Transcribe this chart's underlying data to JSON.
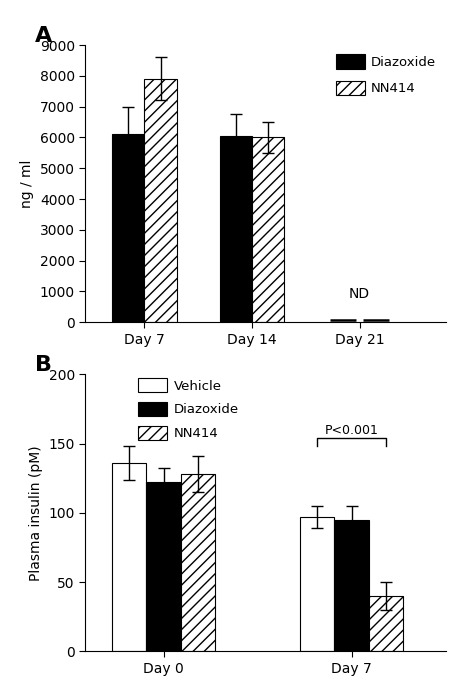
{
  "panel_A": {
    "title": "A",
    "ylabel": "ng / ml",
    "ylim": [
      0,
      9000
    ],
    "yticks": [
      0,
      1000,
      2000,
      3000,
      4000,
      5000,
      6000,
      7000,
      8000,
      9000
    ],
    "groups": [
      "Day 7",
      "Day 14",
      "Day 21"
    ],
    "diazoxide_values": [
      6100,
      6050,
      null
    ],
    "diazoxide_errors": [
      900,
      700,
      null
    ],
    "nn414_values": [
      7900,
      6000,
      null
    ],
    "nn414_errors": [
      700,
      500,
      null
    ],
    "nd_label": "ND",
    "bar_width": 0.3,
    "group_centers": [
      1.0,
      2.0,
      3.0
    ],
    "xlim": [
      0.45,
      3.8
    ],
    "legend_labels": [
      "Diazoxide",
      "NN414"
    ],
    "diazoxide_color": "#000000",
    "nn414_hatch": "///",
    "nn414_facecolor": "#ffffff",
    "nn414_edgecolor": "#000000"
  },
  "panel_B": {
    "title": "B",
    "ylabel": "Plasma insulin (pM)",
    "ylim": [
      0,
      200
    ],
    "yticks": [
      0,
      50,
      100,
      150,
      200
    ],
    "groups": [
      "Day 0",
      "Day 7"
    ],
    "vehicle_values": [
      136,
      97
    ],
    "vehicle_errors": [
      12,
      8
    ],
    "diazoxide_values": [
      122,
      95
    ],
    "diazoxide_errors": [
      10,
      10
    ],
    "nn414_values": [
      128,
      40
    ],
    "nn414_errors": [
      13,
      10
    ],
    "bar_width": 0.22,
    "group_centers": [
      1.0,
      2.2
    ],
    "xlim": [
      0.5,
      2.8
    ],
    "legend_labels": [
      "Vehicle",
      "Diazoxide",
      "NN414"
    ],
    "vehicle_color": "#ffffff",
    "vehicle_edgecolor": "#000000",
    "diazoxide_color": "#000000",
    "nn414_hatch": "///",
    "nn414_facecolor": "#ffffff",
    "nn414_edgecolor": "#000000",
    "significance_label": "P<0.001"
  }
}
